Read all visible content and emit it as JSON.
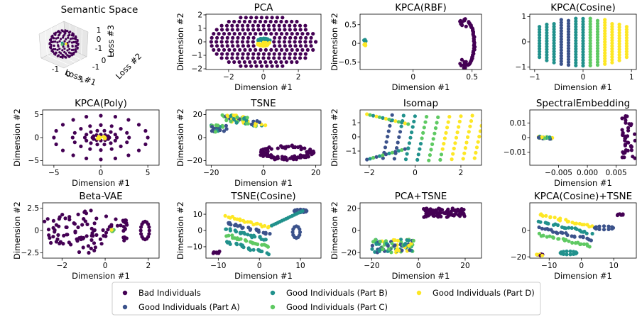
{
  "legend": {
    "items": [
      {
        "label": "Bad Individuals",
        "color": "#440154"
      },
      {
        "label": "Good Individuals (Part A)",
        "color": "#3b528b"
      },
      {
        "label": "Good Individuals (Part B)",
        "color": "#21918c"
      },
      {
        "label": "Good Individuals (Part C)",
        "color": "#5ec962"
      },
      {
        "label": "Good Individuals (Part D)",
        "color": "#fde725"
      }
    ]
  },
  "chart_data": [
    {
      "type": "scatter3d",
      "title": "Semantic Space",
      "xlabel": "Loss #1",
      "ylabel": "Loss #2",
      "zlabel": "Loss #3",
      "xticks": [
        "-1",
        "0",
        "1"
      ],
      "yticks": [
        "-1",
        "0",
        "1"
      ],
      "zticks": [
        "-1",
        "0",
        "1"
      ]
    },
    {
      "type": "scatter",
      "title": "PCA",
      "xlabel": "Dimension #1",
      "ylabel": "Dimension #2",
      "xlim": [
        -3.3,
        3.3
      ],
      "ylim": [
        -2.05,
        2.05
      ],
      "xticks": [
        -2,
        0,
        2
      ],
      "yticks": [
        -2,
        -1,
        0,
        1,
        2
      ]
    },
    {
      "type": "scatter",
      "title": "KPCA(RBF)",
      "xlabel": "Dimension #1",
      "ylabel": "Dimension #2",
      "xlim": [
        -0.45,
        0.58
      ],
      "ylim": [
        -0.7,
        0.78
      ],
      "xticks": [
        0.0,
        0.5
      ],
      "yticks": [
        -0.5,
        0.0,
        0.5
      ]
    },
    {
      "type": "scatter",
      "title": "KPCA(Cosine)",
      "xlabel": "Dimension #1",
      "ylabel": "",
      "xlim": [
        -1.1,
        1.1
      ],
      "ylim": [
        -1.1,
        1.1
      ],
      "xticks": [
        -1,
        0,
        1
      ],
      "yticks": [
        -1,
        0,
        1
      ]
    },
    {
      "type": "scatter",
      "title": "KPCA(Poly)",
      "xlabel": "Dimension #1",
      "ylabel": "Dimension #2",
      "xlim": [
        -6.2,
        6.2
      ],
      "ylim": [
        -6.0,
        6.0
      ],
      "xticks": [
        -5,
        0,
        5
      ],
      "yticks": [
        -5,
        0,
        5
      ]
    },
    {
      "type": "scatter",
      "title": "TSNE",
      "xlabel": "Dimension #1",
      "ylabel": "Dimension #2",
      "xlim": [
        -22,
        22
      ],
      "ylim": [
        -24,
        24
      ],
      "xticks": [
        -20,
        0,
        20
      ],
      "yticks": [
        -20,
        0,
        20
      ]
    },
    {
      "type": "scatter",
      "title": "Isomap",
      "xlabel": "",
      "ylabel": "Dimension #2",
      "xlim": [
        -2.4,
        2.9
      ],
      "ylim": [
        -2.0,
        1.9
      ],
      "xticks": [
        -2,
        0,
        2
      ],
      "yticks": [
        -1,
        0,
        1
      ]
    },
    {
      "type": "scatter",
      "title": "SpectralEmbedding",
      "xlabel": "Dimension #1",
      "ylabel": "",
      "xlim": [
        -0.01,
        0.0085
      ],
      "ylim": [
        -0.019,
        0.019
      ],
      "xticks": [
        -0.005,
        0.0,
        0.005
      ],
      "xticklabels": [
        "−0.005",
        "0.000",
        "0.005"
      ],
      "yticks": [
        -0.01,
        0.0,
        0.01
      ]
    },
    {
      "type": "scatter",
      "title": "Beta-VAE",
      "xlabel": "Dimension #1",
      "ylabel": "Dimension #2",
      "xlim": [
        -2.9,
        2.5
      ],
      "ylim": [
        -3.1,
        3.1
      ],
      "xticks": [
        -2,
        0,
        2
      ],
      "yticks": [
        -2.5,
        0.0,
        2.5
      ]
    },
    {
      "type": "scatter",
      "title": "TSNE(Cosine)",
      "xlabel": "Dimension #1",
      "ylabel": "Dimension #2",
      "xlim": [
        -13,
        15
      ],
      "ylim": [
        -17,
        17
      ],
      "xticks": [
        -10,
        0,
        10
      ],
      "yticks": [
        -10,
        0,
        10
      ]
    },
    {
      "type": "scatter",
      "title": "PCA+TSNE",
      "xlabel": "Dimension #1",
      "ylabel": "Dimension #2",
      "xlim": [
        -25,
        27
      ],
      "ylim": [
        -25,
        25
      ],
      "xticks": [
        -20,
        0,
        20
      ],
      "yticks": [
        -20,
        0,
        20
      ]
    },
    {
      "type": "scatter",
      "title": "KPCA(Cosine)+TSNE",
      "xlabel": "Dimension #1",
      "ylabel": "",
      "xlim": [
        -16,
        17
      ],
      "ylim": [
        -21,
        21
      ],
      "xticks": [
        -10,
        0,
        10
      ],
      "yticks": [
        -20,
        0
      ]
    }
  ]
}
